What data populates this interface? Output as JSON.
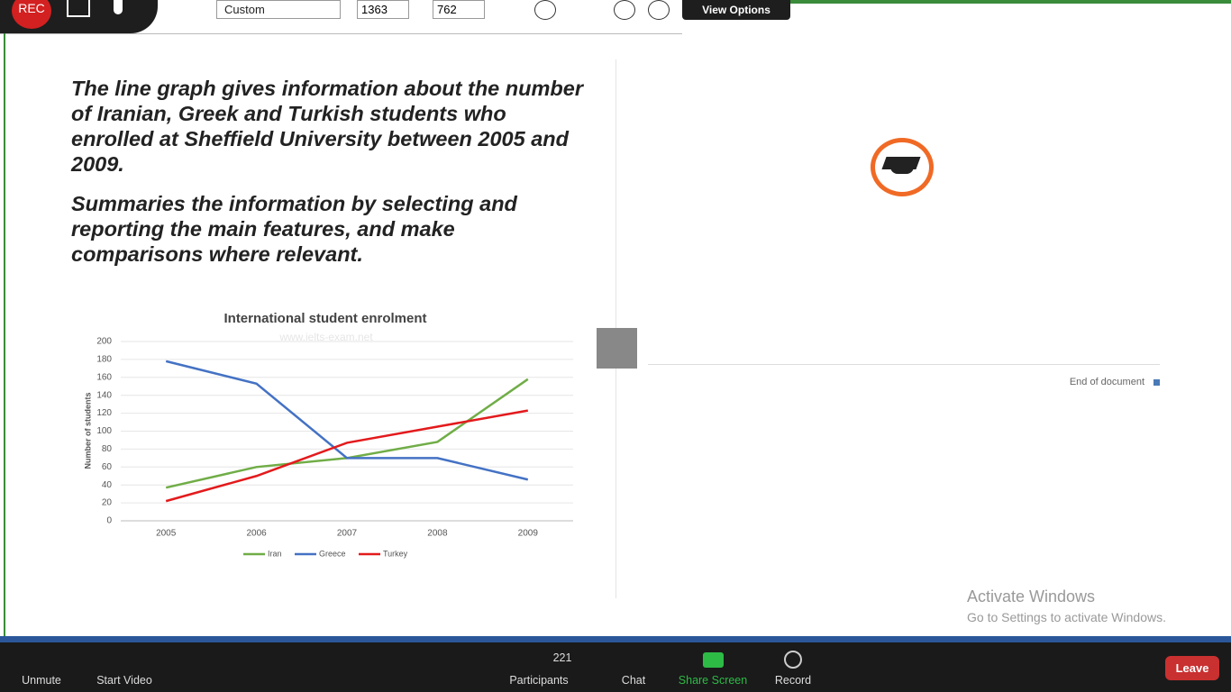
{
  "toolbar": {
    "rec": "REC",
    "preset": "Custom",
    "width": "1363",
    "height": "762",
    "view_options": "View Options"
  },
  "document": {
    "prompt_1": "The line graph gives information about the number of Iranian, Greek and Turkish students who enrolled at Sheffield University between 2005 and 2009.",
    "prompt_2": "Summaries the information by selecting and reporting the main features, and make comparisons where relevant.",
    "end": "End of document"
  },
  "chart_data": {
    "type": "line",
    "title": "International student enrolment",
    "watermark": "www.ielts-exam.net",
    "y_label": "Number of students",
    "categories": [
      "2005",
      "2006",
      "2007",
      "2008",
      "2009"
    ],
    "series": [
      {
        "name": "Iran",
        "color": "#70ad47",
        "values": [
          37,
          60,
          70,
          88,
          158
        ]
      },
      {
        "name": "Greece",
        "color": "#4472c4",
        "values": [
          178,
          153,
          70,
          70,
          46
        ]
      },
      {
        "name": "Turkey",
        "color": "#e31a1c",
        "values": [
          22,
          50,
          87,
          105,
          123
        ]
      }
    ],
    "ylim": [
      0,
      200
    ],
    "yticks": [
      0,
      20,
      40,
      60,
      80,
      100,
      120,
      140,
      160,
      180,
      200
    ],
    "grid": true
  },
  "windows": {
    "title": "Activate Windows",
    "subtitle": "Go to Settings to activate Windows."
  },
  "meeting_bar": {
    "unmute": "Unmute",
    "start_video": "Start Video",
    "participants": "Participants",
    "participant_count": "221",
    "chat": "Chat",
    "share_screen": "Share Screen",
    "record": "Record",
    "leave": "Leave"
  }
}
